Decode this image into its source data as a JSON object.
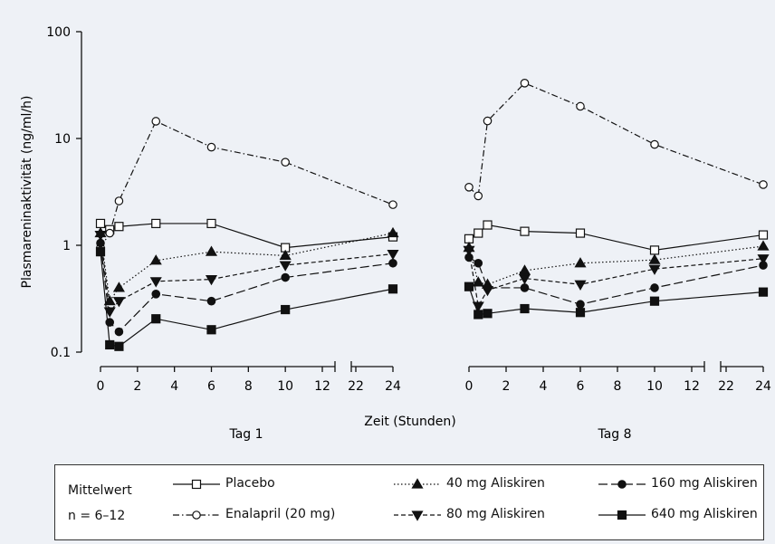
{
  "chart_data": {
    "type": "line",
    "ylabel": "Plasmareninaktivität (ng/ml/h)",
    "xlabel": "Zeit (Stunden)",
    "yscale": "log",
    "ylim": [
      0.1,
      100
    ],
    "yticks": [
      "0.1",
      "1",
      "10",
      "100"
    ],
    "grid": false,
    "legend_position": "bottom",
    "panels": [
      {
        "label": "Tag 1",
        "xticks": [
          "0",
          "2",
          "4",
          "6",
          "8",
          "10",
          "12",
          "22",
          "24"
        ],
        "series": [
          {
            "name": "Placebo",
            "x": [
              0,
              0.5,
              1,
              3,
              6,
              10,
              24
            ],
            "y": [
              1.6,
              1.4,
              1.5,
              1.6,
              1.6,
              0.95,
              1.2
            ]
          },
          {
            "name": "Enalapril (20 mg)",
            "x": [
              0,
              0.5,
              1,
              3,
              6,
              10,
              24
            ],
            "y": [
              0.95,
              1.3,
              2.6,
              14.5,
              8.3,
              6.0,
              2.4
            ]
          },
          {
            "name": "40 mg Aliskiren",
            "x": [
              0,
              0.5,
              1,
              3,
              6,
              10,
              24
            ],
            "y": [
              1.3,
              0.3,
              0.4,
              0.72,
              0.87,
              0.8,
              1.3
            ]
          },
          {
            "name": "80 mg Aliskiren",
            "x": [
              0,
              0.5,
              1,
              3,
              6,
              10,
              24
            ],
            "y": [
              1.25,
              0.24,
              0.3,
              0.46,
              0.48,
              0.65,
              0.83
            ]
          },
          {
            "name": "160 mg Aliskiren",
            "x": [
              0,
              0.5,
              1,
              3,
              6,
              10,
              24
            ],
            "y": [
              1.05,
              0.19,
              0.155,
              0.35,
              0.3,
              0.5,
              0.68
            ]
          },
          {
            "name": "640 mg Aliskiren",
            "x": [
              0,
              0.5,
              1,
              3,
              6,
              10,
              24
            ],
            "y": [
              0.87,
              0.117,
              0.113,
              0.205,
              0.162,
              0.25,
              0.39
            ]
          }
        ]
      },
      {
        "label": "Tag 8",
        "xticks": [
          "0",
          "2",
          "4",
          "6",
          "8",
          "10",
          "12",
          "22",
          "24"
        ],
        "series": [
          {
            "name": "Placebo",
            "x": [
              0,
              0.5,
              1,
              3,
              6,
              10,
              24
            ],
            "y": [
              1.15,
              1.3,
              1.55,
              1.35,
              1.3,
              0.9,
              1.25
            ]
          },
          {
            "name": "Enalapril (20 mg)",
            "x": [
              0,
              0.5,
              1,
              3,
              6,
              10,
              24
            ],
            "y": [
              3.5,
              2.9,
              14.6,
              33,
              20,
              8.8,
              3.7
            ]
          },
          {
            "name": "40 mg Aliskiren",
            "x": [
              0,
              0.5,
              1,
              3,
              6,
              10,
              24
            ],
            "y": [
              0.95,
              0.45,
              0.43,
              0.58,
              0.68,
              0.73,
              0.98
            ]
          },
          {
            "name": "80 mg Aliskiren",
            "x": [
              0,
              0.5,
              1,
              3,
              6,
              10,
              24
            ],
            "y": [
              0.9,
              0.27,
              0.38,
              0.49,
              0.43,
              0.6,
              0.75
            ]
          },
          {
            "name": "160 mg Aliskiren",
            "x": [
              0,
              0.5,
              1,
              3,
              6,
              10,
              24
            ],
            "y": [
              0.77,
              0.68,
              0.4,
              0.4,
              0.28,
              0.4,
              0.65
            ]
          },
          {
            "name": "640 mg Aliskiren",
            "x": [
              0,
              0.5,
              1,
              3,
              6,
              10,
              24
            ],
            "y": [
              0.41,
              0.225,
              0.23,
              0.255,
              0.235,
              0.3,
              0.365
            ]
          }
        ]
      }
    ]
  },
  "legend": {
    "heading": "Mittelwert",
    "subheading": "n = 6–12",
    "items": [
      {
        "label": "Placebo",
        "marker": "open-square",
        "line": "solid"
      },
      {
        "label": "40 mg Aliskiren",
        "marker": "filled-triangle-up",
        "line": "dotted"
      },
      {
        "label": "160 mg Aliskiren",
        "marker": "filled-circle",
        "line": "long-dash"
      },
      {
        "label": "Enalapril (20 mg)",
        "marker": "open-circle",
        "line": "dash-dot"
      },
      {
        "label": "80 mg Aliskiren",
        "marker": "filled-triangle-down",
        "line": "short-dash"
      },
      {
        "label": "640 mg Aliskiren",
        "marker": "filled-square",
        "line": "solid"
      }
    ]
  }
}
